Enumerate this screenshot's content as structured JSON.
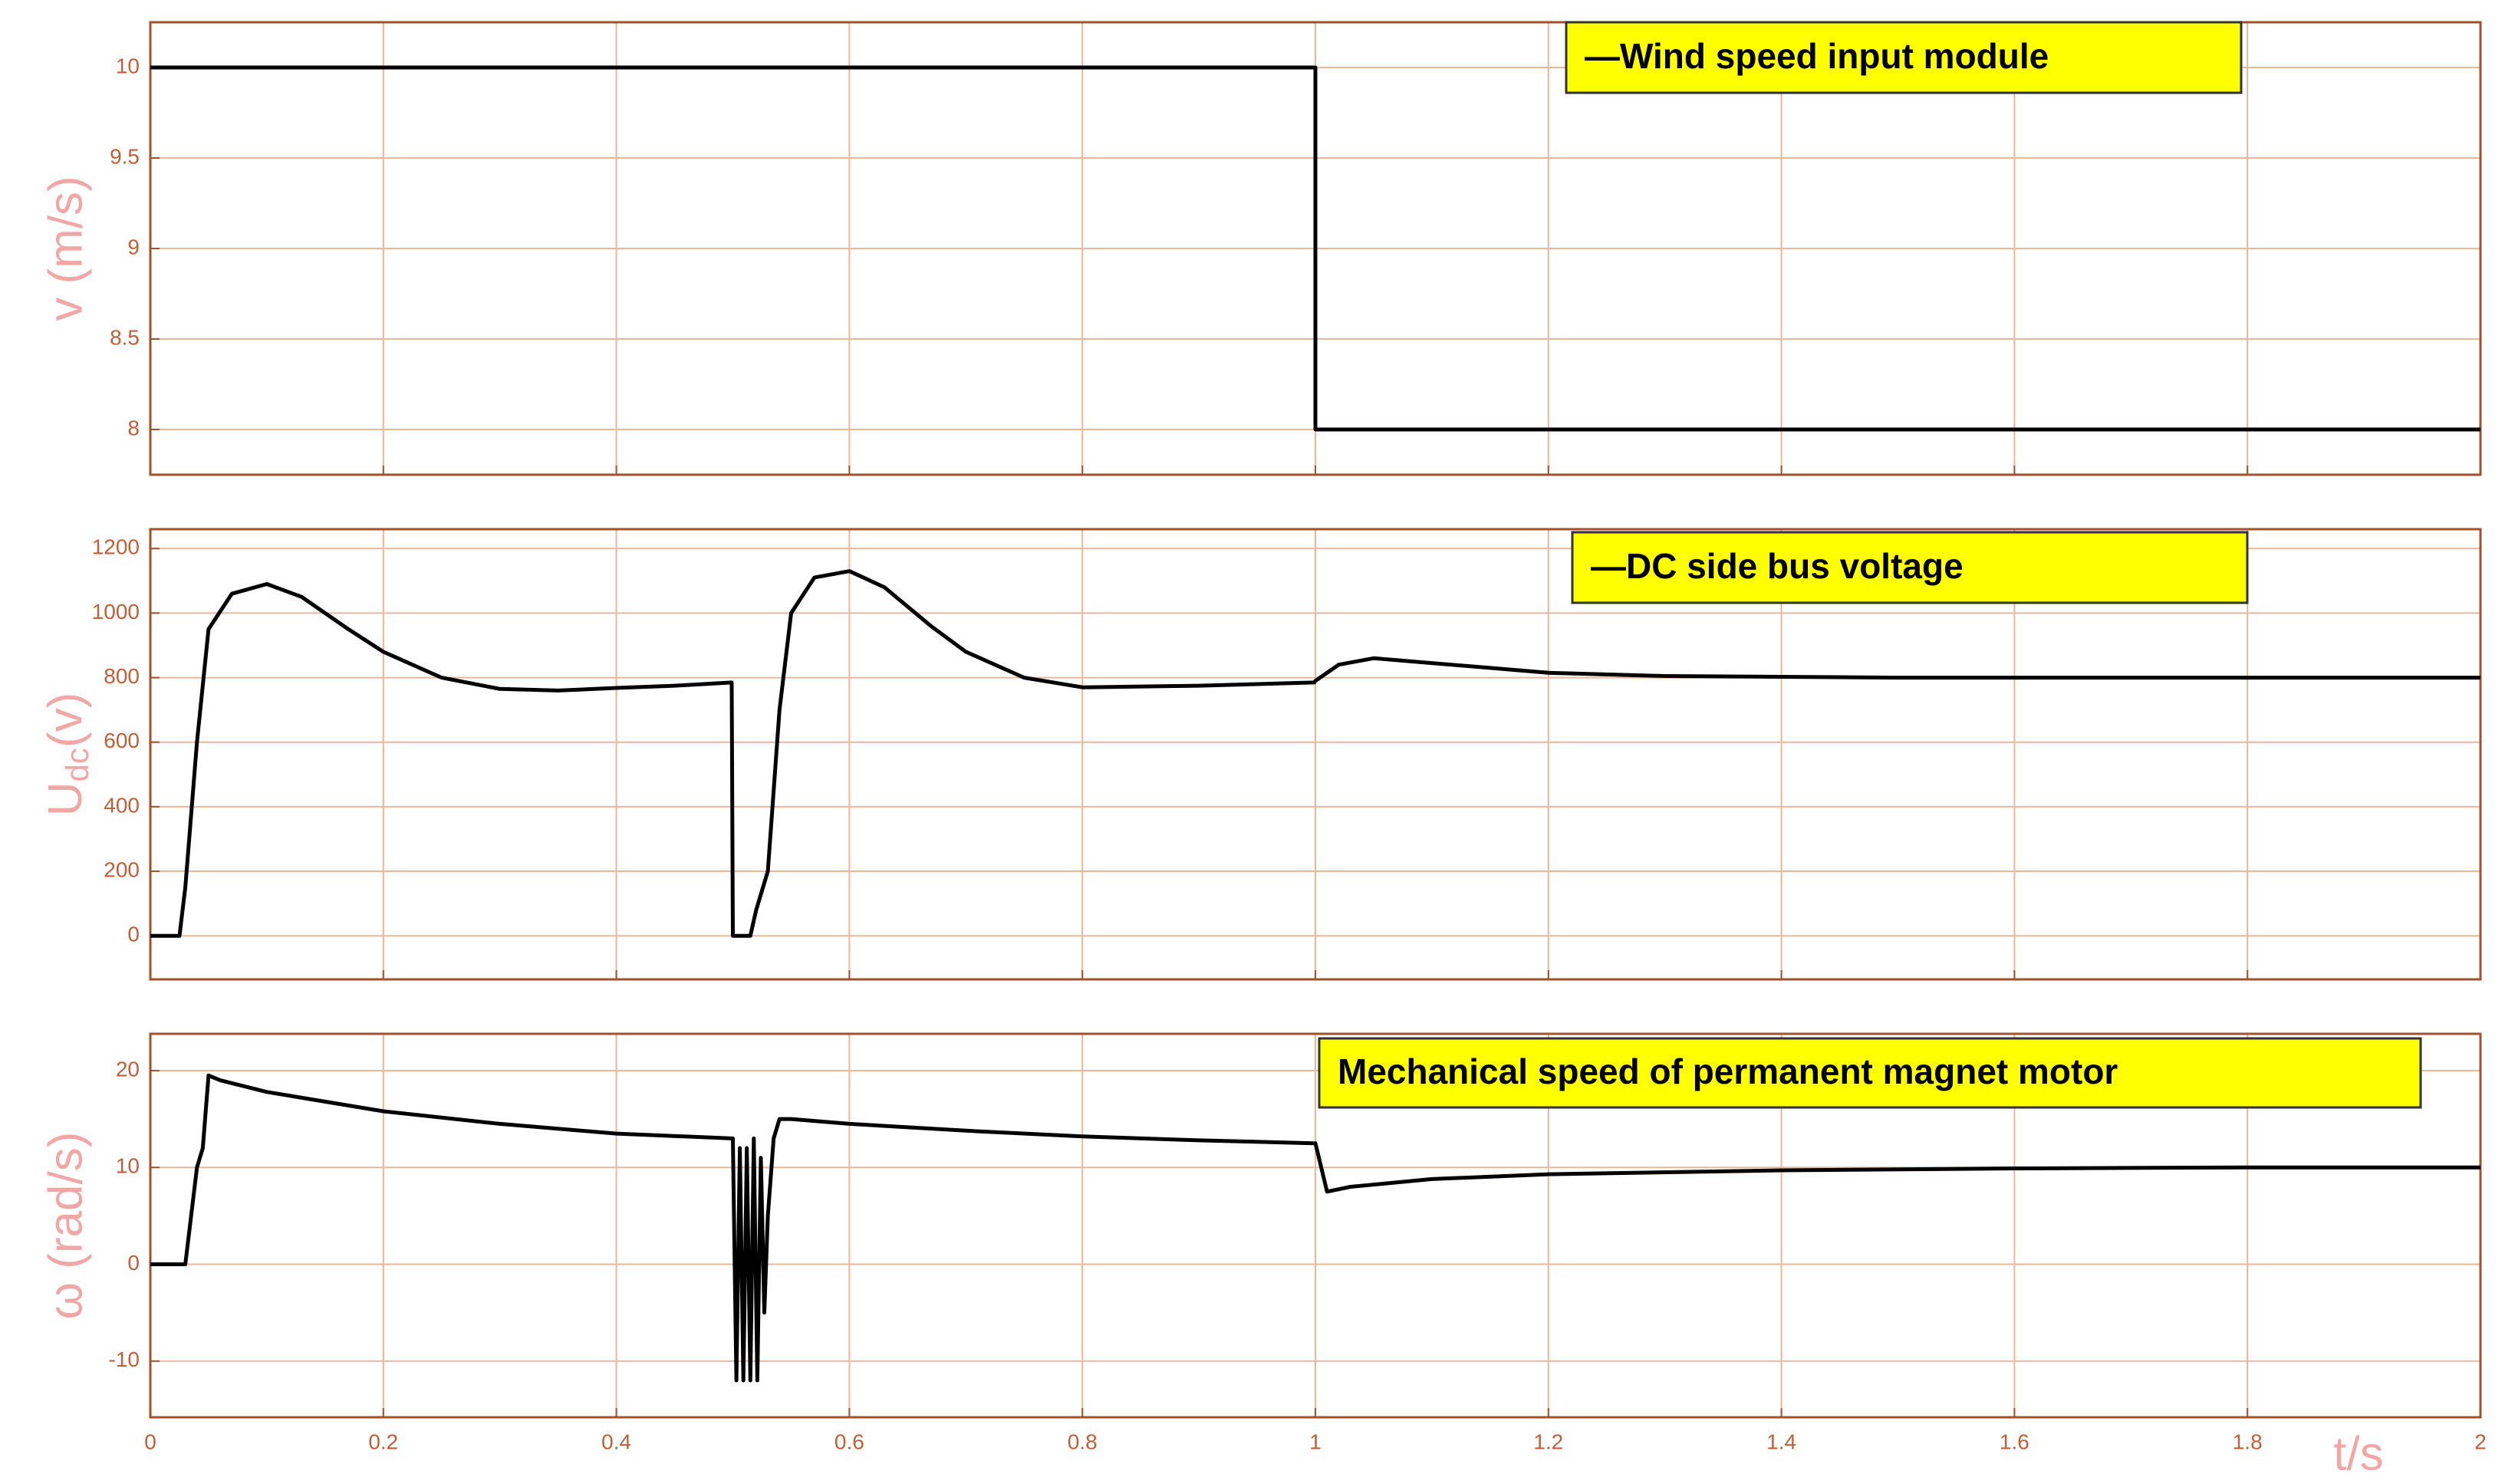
{
  "chart_data": [
    {
      "type": "line",
      "ylabel": "v (m/s)",
      "x": [
        0,
        1,
        1,
        2
      ],
      "series": [
        {
          "name": "—Wind speed input  module",
          "color": "#000000",
          "values": [
            10,
            10,
            8,
            8
          ]
        }
      ],
      "xlim": [
        0,
        2
      ],
      "xticks": [
        0,
        0.2,
        0.4,
        0.6,
        0.8,
        1,
        1.2,
        1.4,
        1.6,
        1.8,
        2
      ],
      "ylim": [
        7.75,
        10.25
      ],
      "yticks": [
        8,
        8.5,
        9,
        9.5,
        10
      ],
      "grid": true
    },
    {
      "type": "line",
      "ylabel": {
        "text": "U",
        "sub": "dc",
        "after": "(v)"
      },
      "x": [
        0,
        0.025,
        0.03,
        0.04,
        0.05,
        0.07,
        0.1,
        0.13,
        0.17,
        0.2,
        0.25,
        0.3,
        0.35,
        0.4,
        0.45,
        0.499,
        0.5,
        0.515,
        0.52,
        0.53,
        0.54,
        0.55,
        0.57,
        0.6,
        0.63,
        0.67,
        0.7,
        0.75,
        0.8,
        0.9,
        0.999,
        1.0,
        1.02,
        1.05,
        1.1,
        1.15,
        1.2,
        1.3,
        1.5,
        2
      ],
      "series": [
        {
          "name": "—DC side bus voltage",
          "color": "#000000",
          "values": [
            0,
            0,
            150,
            600,
            950,
            1060,
            1090,
            1050,
            950,
            880,
            800,
            765,
            760,
            768,
            775,
            785,
            0,
            0,
            80,
            200,
            700,
            1000,
            1110,
            1130,
            1080,
            960,
            880,
            800,
            770,
            775,
            785,
            790,
            840,
            860,
            845,
            830,
            815,
            805,
            800,
            800
          ]
        }
      ],
      "xlim": [
        0,
        2
      ],
      "xticks": [
        0,
        0.2,
        0.4,
        0.6,
        0.8,
        1,
        1.2,
        1.4,
        1.6,
        1.8,
        2
      ],
      "ylim": [
        -135,
        1260
      ],
      "yticks": [
        0,
        200,
        400,
        600,
        800,
        1000,
        1200
      ],
      "grid": true
    },
    {
      "type": "line",
      "ylabel": "ω (rad/s)",
      "xlabel": "t/s",
      "x": [
        0,
        0.03,
        0.035,
        0.04,
        0.045,
        0.05,
        0.06,
        0.1,
        0.2,
        0.3,
        0.4,
        0.499,
        0.5,
        0.503,
        0.506,
        0.509,
        0.512,
        0.515,
        0.518,
        0.521,
        0.524,
        0.527,
        0.53,
        0.535,
        0.54,
        0.55,
        0.6,
        0.7,
        0.8,
        0.9,
        0.999,
        1.0,
        1.01,
        1.03,
        1.1,
        1.2,
        1.4,
        1.6,
        1.8,
        2
      ],
      "series": [
        {
          "name": "Mechanical speed of permanent magnet motor",
          "color": "#000000",
          "values": [
            0,
            0,
            5,
            10,
            12,
            19.5,
            19,
            17.8,
            15.8,
            14.5,
            13.5,
            13,
            13,
            -12,
            12,
            -12,
            12,
            -12,
            13,
            -12,
            11,
            -5,
            5,
            13,
            15,
            15,
            14.5,
            13.8,
            13.2,
            12.8,
            12.5,
            12.5,
            7.5,
            8,
            8.8,
            9.3,
            9.7,
            9.9,
            10,
            10
          ]
        }
      ],
      "xlim": [
        0,
        2
      ],
      "xticks": [
        0,
        0.2,
        0.4,
        0.6,
        0.8,
        1,
        1.2,
        1.4,
        1.6,
        1.8,
        2
      ],
      "ylim": [
        -15.8,
        23.8
      ],
      "yticks": [
        -10,
        0,
        10,
        20
      ],
      "grid": true
    }
  ]
}
